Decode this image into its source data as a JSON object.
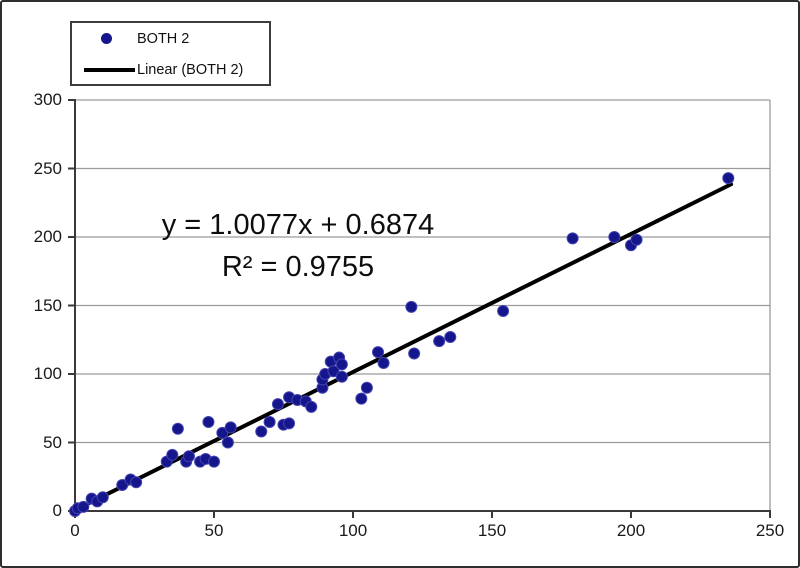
{
  "figure": {
    "background": "#ffffff",
    "border_color": "#2e2e2e"
  },
  "legend": {
    "position": "top-left",
    "items": [
      {
        "label": "BOTH 2",
        "marker": "dot",
        "color": "#16168c"
      },
      {
        "label": "Linear (BOTH 2)",
        "marker": "line",
        "color": "#000000"
      }
    ]
  },
  "annotation": {
    "equation": "y = 1.0077x + 0.6874",
    "r_squared": "R² = 0.9755"
  },
  "chart_data": {
    "type": "scatter",
    "title": "",
    "xlabel": "",
    "ylabel": "",
    "xlim": [
      0,
      250
    ],
    "ylim": [
      0,
      300
    ],
    "x_ticks": [
      0,
      50,
      100,
      150,
      200,
      250
    ],
    "y_ticks": [
      0,
      50,
      100,
      150,
      200,
      250,
      300
    ],
    "grid": "horizontal",
    "grid_color": "#9a9a9a",
    "axis_color": "#3a3a3a",
    "legend_position": "top-left",
    "series": [
      {
        "name": "BOTH 2",
        "color": "#16168c",
        "marker_edge_color": "#4242b0",
        "points": [
          [
            0,
            0
          ],
          [
            1,
            2
          ],
          [
            3,
            3
          ],
          [
            6,
            9
          ],
          [
            8,
            7
          ],
          [
            10,
            10
          ],
          [
            17,
            19
          ],
          [
            20,
            23
          ],
          [
            22,
            21
          ],
          [
            33,
            36
          ],
          [
            35,
            41
          ],
          [
            37,
            60
          ],
          [
            40,
            36
          ],
          [
            41,
            40
          ],
          [
            45,
            36
          ],
          [
            47,
            38
          ],
          [
            48,
            65
          ],
          [
            50,
            36
          ],
          [
            53,
            57
          ],
          [
            55,
            50
          ],
          [
            56,
            61
          ],
          [
            67,
            58
          ],
          [
            70,
            65
          ],
          [
            73,
            78
          ],
          [
            75,
            63
          ],
          [
            77,
            64
          ],
          [
            77,
            83
          ],
          [
            80,
            81
          ],
          [
            83,
            80
          ],
          [
            85,
            76
          ],
          [
            89,
            90
          ],
          [
            89,
            96
          ],
          [
            90,
            100
          ],
          [
            92,
            109
          ],
          [
            93,
            102
          ],
          [
            95,
            112
          ],
          [
            96,
            107
          ],
          [
            96,
            98
          ],
          [
            103,
            82
          ],
          [
            105,
            90
          ],
          [
            109,
            116
          ],
          [
            111,
            108
          ],
          [
            121,
            149
          ],
          [
            122,
            115
          ],
          [
            131,
            124
          ],
          [
            135,
            127
          ],
          [
            154,
            146
          ],
          [
            179,
            199
          ],
          [
            194,
            200
          ],
          [
            200,
            194
          ],
          [
            202,
            198
          ],
          [
            235,
            243
          ]
        ]
      }
    ],
    "trendline": {
      "label": "Linear (BOTH 2)",
      "slope": 1.0077,
      "intercept": 0.6874,
      "r2": 0.9755,
      "x_range": [
        0,
        236
      ],
      "color": "#000000",
      "width": 4
    }
  }
}
